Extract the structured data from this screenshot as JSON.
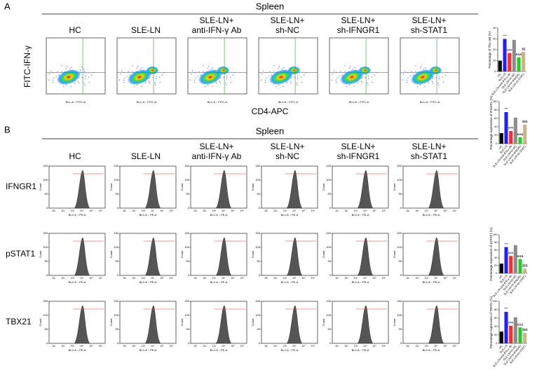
{
  "panel_a": {
    "label": "A",
    "heading": "Spleen",
    "y_axis_label": "FITC-IFN-γ",
    "x_axis_label": "CD4-APC",
    "groups": [
      [
        "HC"
      ],
      [
        "SLE-LN"
      ],
      [
        "SLE-LN+",
        "anti-IFN-γ Ab"
      ],
      [
        "SLE-LN+",
        "sh-NC"
      ],
      [
        "SLE-LN+",
        "sh-IFNGR1"
      ],
      [
        "SLE-LN+",
        "sh-STAT1"
      ]
    ],
    "plot_xlabel": "BL1-A :: FITC-A"
  },
  "panel_b": {
    "label": "B",
    "heading": "Spleen",
    "groups": [
      [
        "HC"
      ],
      [
        "SLE-LN"
      ],
      [
        "SLE-LN+",
        "anti-IFN-γ Ab"
      ],
      [
        "SLE-LN+",
        "sh-NC"
      ],
      [
        "SLE-LN+",
        "sh-IFNGR1"
      ],
      [
        "SLE-LN+",
        "sh-STAT1"
      ]
    ],
    "rows": [
      "IFNGR1",
      "pSTAT1",
      "TBX21"
    ],
    "hist_xlabel": "BL2-A :: PE-A",
    "hist_ylabel": "Count",
    "hist_yticks": [
      0,
      50,
      100,
      150
    ],
    "hist_xticks": [
      "10¹",
      "10²",
      "10³",
      "10⁴",
      "10⁵",
      "10⁶"
    ]
  },
  "chart_data": [
    {
      "type": "bar",
      "ylabel": "Percentage of Th1 cell (%)",
      "categories": [
        "HC",
        "SLE-LN",
        "SLE-LN+anti-IFN-γ Ab",
        "SLE-LN+sh-NC",
        "SLE-LN+sh-IFNGR1",
        "SLE-LN+sh-STAT1"
      ],
      "values": [
        10,
        30,
        17,
        29,
        13,
        18
      ],
      "annotations": [
        null,
        "***",
        "###",
        null,
        "&&&",
        "$$"
      ],
      "colors": [
        "#000000",
        "#1f1fff",
        "#ff2a2a",
        "#8c8c8c",
        "#22cc22",
        "#c8b48c"
      ],
      "ylim": [
        0,
        40
      ],
      "yticks": [
        0,
        10,
        20,
        30,
        40
      ]
    },
    {
      "type": "bar",
      "ylabel": "Percentage expression of IFNGR1 (%)",
      "categories": [
        "HC",
        "SLE-LN",
        "SLE-LN+anti-IFN-γ Ab",
        "SLE-LN+sh-NC",
        "SLE-LN+sh-IFNGR1",
        "SLE-LN+sh-STAT1"
      ],
      "values": [
        25,
        75,
        30,
        62,
        15,
        45
      ],
      "annotations": [
        null,
        "***",
        "###",
        null,
        "&&&",
        "$$$"
      ],
      "colors": [
        "#000000",
        "#1f1fff",
        "#ff2a2a",
        "#8c8c8c",
        "#22cc22",
        "#c8b48c"
      ],
      "ylim": [
        0,
        100
      ],
      "yticks": [
        0,
        20,
        40,
        60,
        80,
        100
      ]
    },
    {
      "type": "bar",
      "ylabel": "Percentage expression of pSTAT1 (%)",
      "categories": [
        "HC",
        "SLE-LN",
        "SLE-LN+anti-IFN-γ Ab",
        "SLE-LN+sh-NC",
        "SLE-LN+sh-IFNGR1",
        "SLE-LN+sh-STAT1"
      ],
      "values": [
        25,
        68,
        45,
        73,
        37,
        12
      ],
      "annotations": [
        null,
        "***",
        "###",
        null,
        "&&&",
        "$$$"
      ],
      "colors": [
        "#000000",
        "#1f1fff",
        "#ff2a2a",
        "#8c8c8c",
        "#22cc22",
        "#c8b48c"
      ],
      "ylim": [
        0,
        100
      ],
      "yticks": [
        0,
        20,
        40,
        60,
        80,
        100
      ]
    },
    {
      "type": "bar",
      "ylabel": "Percentage expression of TBX21 (%)",
      "categories": [
        "HC",
        "SLE-LN",
        "SLE-LN+anti-IFN-γ Ab",
        "SLE-LN+sh-NC",
        "SLE-LN+sh-IFNGR1",
        "SLE-LN+sh-STAT1"
      ],
      "values": [
        28,
        75,
        42,
        62,
        38,
        25
      ],
      "annotations": [
        null,
        "***",
        "###",
        null,
        "&&&",
        "$$$"
      ],
      "colors": [
        "#000000",
        "#1f1fff",
        "#ff2a2a",
        "#8c8c8c",
        "#22cc22",
        "#c8b48c"
      ],
      "ylim": [
        0,
        100
      ],
      "yticks": [
        0,
        20,
        40,
        60,
        80,
        100
      ]
    }
  ]
}
